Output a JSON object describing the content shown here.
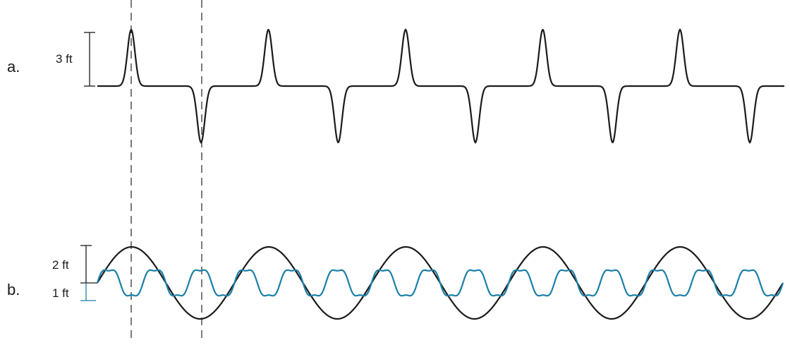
{
  "part_a": {
    "label": "a.",
    "amplitude_label": "3 ft",
    "wave_color": "#1a1a1a",
    "pulse_pairs": 5
  },
  "part_b": {
    "label": "b.",
    "large_wave": {
      "amplitude_label": "2 ft",
      "color": "#1a1a1a",
      "cycles": 5
    },
    "small_wave": {
      "amplitude_label": "1 ft",
      "color": "#1b7fa8",
      "cycles": 15
    }
  },
  "guides": {
    "color": "#333333",
    "count": 2
  }
}
